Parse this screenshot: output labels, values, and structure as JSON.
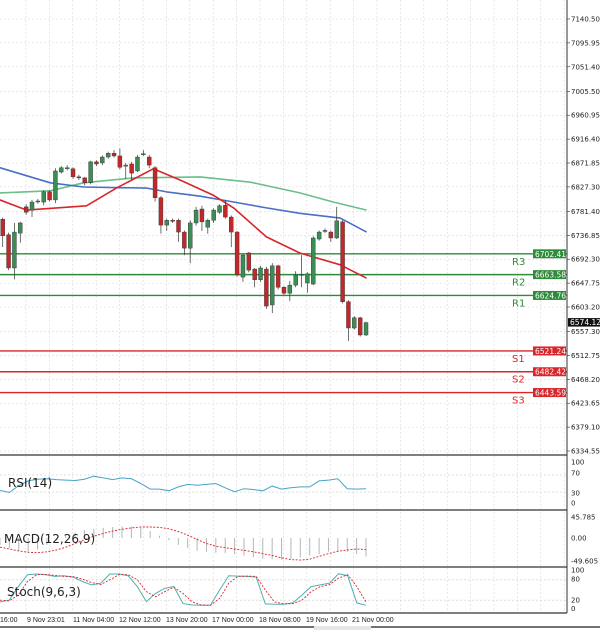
{
  "chart_data": {
    "type": "candlestick",
    "grid": true,
    "colors": {
      "up": "#3c8c55",
      "down": "#c0282a",
      "ma_fast": "#d9262a",
      "ma_mid": "#4a6fc8",
      "ma_slow": "#6cbf8a",
      "resistance": "#2e8b3a",
      "support": "#d9262a",
      "current": "#111111"
    },
    "price_axis": {
      "range": [
        6334.55,
        7140.5
      ],
      "ticks": [
        "7140.50",
        "7095.95",
        "7051.40",
        "7005.50",
        "6960.95",
        "6916.40",
        "6871.85",
        "6827.30",
        "6781.40",
        "6736.85",
        "6692.30",
        "6647.75",
        "6603.20",
        "6557.30",
        "6512.75",
        "6468.20",
        "6423.65",
        "6379.10",
        "6334.55"
      ]
    },
    "time_axis": {
      "ticks": [
        "16:00",
        "9 Nov 23:01",
        "11 Nov 04:00",
        "12 Nov 12:00",
        "13 Nov 20:00",
        "17 Nov 00:00",
        "18 Nov 08:00",
        "19 Nov 16:00",
        "21 Nov 00:00"
      ]
    },
    "current_price": "6574.12",
    "levels": [
      {
        "name": "R3",
        "value": "6702.41",
        "kind": "resistance"
      },
      {
        "name": "R2",
        "value": "6663.58",
        "kind": "resistance"
      },
      {
        "name": "R1",
        "value": "6624.76",
        "kind": "resistance"
      },
      {
        "name": "S1",
        "value": "6521.24",
        "kind": "support"
      },
      {
        "name": "S2",
        "value": "6482.42",
        "kind": "support"
      },
      {
        "name": "S3",
        "value": "6443.59",
        "kind": "support"
      }
    ],
    "candles": [
      [
        6767,
        6770,
        6715,
        6736
      ],
      [
        6738,
        6742,
        6672,
        6676
      ],
      [
        6676,
        6760,
        6655,
        6743
      ],
      [
        6741,
        6762,
        6723,
        6760
      ],
      [
        6790,
        6795,
        6775,
        6780
      ],
      [
        6784,
        6803,
        6771,
        6799
      ],
      [
        6800,
        6805,
        6796,
        6801
      ],
      [
        6799,
        6821,
        6793,
        6818
      ],
      [
        6818,
        6821,
        6800,
        6803
      ],
      [
        6803,
        6862,
        6797,
        6857
      ],
      [
        6855,
        6866,
        6852,
        6863
      ],
      [
        6862,
        6868,
        6858,
        6863
      ],
      [
        6861,
        6864,
        6842,
        6846
      ],
      [
        6846,
        6850,
        6840,
        6845
      ],
      [
        6844,
        6846,
        6830,
        6835
      ],
      [
        6835,
        6876,
        6832,
        6874
      ],
      [
        6874,
        6877,
        6866,
        6870
      ],
      [
        6872,
        6886,
        6868,
        6883
      ],
      [
        6883,
        6893,
        6880,
        6890
      ],
      [
        6890,
        6896,
        6882,
        6885
      ],
      [
        6885,
        6899,
        6860,
        6864
      ],
      [
        6866,
        6872,
        6842,
        6868
      ],
      [
        6870,
        6874,
        6840,
        6853
      ],
      [
        6857,
        6887,
        6855,
        6883
      ],
      [
        6888,
        6896,
        6885,
        6889
      ],
      [
        6883,
        6887,
        6862,
        6868
      ],
      [
        6863,
        6866,
        6800,
        6807
      ],
      [
        6807,
        6810,
        6740,
        6756
      ],
      [
        6756,
        6768,
        6745,
        6765
      ],
      [
        6765,
        6768,
        6760,
        6764
      ],
      [
        6765,
        6768,
        6725,
        6743
      ],
      [
        6743,
        6746,
        6700,
        6713
      ],
      [
        6713,
        6765,
        6685,
        6760
      ],
      [
        6760,
        6790,
        6755,
        6784
      ],
      [
        6786,
        6792,
        6745,
        6762
      ],
      [
        6752,
        6768,
        6740,
        6765
      ],
      [
        6765,
        6787,
        6760,
        6784
      ],
      [
        6780,
        6795,
        6777,
        6792
      ],
      [
        6793,
        6802,
        6768,
        6771
      ],
      [
        6771,
        6774,
        6715,
        6743
      ],
      [
        6743,
        6745,
        6660,
        6663
      ],
      [
        6659,
        6703,
        6650,
        6700
      ],
      [
        6704,
        6706,
        6668,
        6672
      ],
      [
        6674,
        6676,
        6640,
        6654
      ],
      [
        6654,
        6680,
        6650,
        6676
      ],
      [
        6674,
        6678,
        6600,
        6605
      ],
      [
        6607,
        6685,
        6592,
        6680
      ],
      [
        6680,
        6682,
        6636,
        6640
      ],
      [
        6640,
        6642,
        6626,
        6629
      ],
      [
        6629,
        6652,
        6614,
        6644
      ],
      [
        6644,
        6670,
        6640,
        6663
      ],
      [
        6663,
        6700,
        6640,
        6664
      ],
      [
        6648,
        6668,
        6630,
        6665
      ],
      [
        6646,
        6735,
        6644,
        6732
      ],
      [
        6730,
        6746,
        6727,
        6743
      ],
      [
        6745,
        6750,
        6741,
        6746
      ],
      [
        6743,
        6746,
        6725,
        6732
      ],
      [
        6732,
        6790,
        6730,
        6764
      ],
      [
        6762,
        6765,
        6610,
        6613
      ],
      [
        6613,
        6616,
        6540,
        6564
      ],
      [
        6564,
        6586,
        6561,
        6583
      ],
      [
        6583,
        6585,
        6548,
        6551
      ],
      [
        6551,
        6576,
        6549,
        6574.12
      ]
    ],
    "moving_averages": {
      "fast": [
        [
          -0.5,
          6803
        ],
        [
          4.1,
          6784
        ],
        [
          14.3,
          6792
        ],
        [
          19.4,
          6825
        ],
        [
          25.7,
          6861
        ],
        [
          30.3,
          6840
        ],
        [
          35.9,
          6812
        ],
        [
          39.4,
          6788
        ],
        [
          45,
          6734
        ],
        [
          50.7,
          6704
        ],
        [
          57.6,
          6682
        ],
        [
          62.1,
          6657
        ]
      ],
      "mid": [
        [
          -0.5,
          6863
        ],
        [
          8.1,
          6835
        ],
        [
          13.8,
          6827
        ],
        [
          24.6,
          6825
        ],
        [
          28,
          6818
        ],
        [
          33.7,
          6810
        ],
        [
          39.4,
          6799
        ],
        [
          45,
          6788
        ],
        [
          50.7,
          6778
        ],
        [
          57.6,
          6769
        ],
        [
          62.1,
          6743
        ]
      ],
      "slow": [
        [
          -0.5,
          6816
        ],
        [
          8.1,
          6820
        ],
        [
          13.8,
          6835
        ],
        [
          22.3,
          6844
        ],
        [
          33.7,
          6846
        ],
        [
          42.3,
          6836
        ],
        [
          50.7,
          6816
        ],
        [
          56.4,
          6799
        ],
        [
          62.1,
          6784
        ]
      ]
    },
    "indicators": {
      "rsi": {
        "label": "RSI(14)",
        "ticks": [
          "100",
          "70",
          "30",
          "0"
        ],
        "values": [
          34,
          29,
          45,
          56,
          60,
          61,
          59,
          58,
          57,
          60,
          67,
          63,
          59,
          63,
          61,
          50,
          37,
          37,
          33,
          42,
          48,
          46,
          48,
          50,
          40,
          31,
          38,
          36,
          33,
          44,
          37,
          40,
          42,
          42,
          56,
          58,
          61,
          38,
          37,
          38
        ]
      },
      "macd": {
        "label": "MACD(12,26,9)",
        "ticks": [
          "45.785",
          "0.00",
          "-49.605"
        ],
        "histogram": [
          -15,
          -22,
          -28,
          -30,
          -25,
          -15,
          -5,
          5,
          12,
          17,
          20,
          22,
          24,
          25,
          25,
          22,
          15,
          5,
          -5,
          -15,
          -22,
          -28,
          -30,
          -32,
          -33,
          -35,
          -38,
          -42,
          -45,
          -46,
          -47,
          -45,
          -42,
          -38,
          -35,
          -30,
          -28,
          -30,
          -35,
          -40
        ],
        "signal": [
          -20,
          -24,
          -28,
          -31,
          -32,
          -30,
          -26,
          -20,
          -12,
          -4,
          4,
          10,
          15,
          19,
          22,
          24,
          24,
          23,
          20,
          14,
          6,
          -3,
          -12,
          -18,
          -21,
          -24,
          -27,
          -30,
          -34,
          -38,
          -43,
          -47,
          -48,
          -46,
          -40,
          -34,
          -29,
          -26,
          -24,
          -25
        ]
      },
      "stoch": {
        "label": "Stoch(9,6,3)",
        "ticks": [
          "100",
          "80",
          "20",
          "0"
        ],
        "k": [
          15,
          20,
          60,
          95,
          97,
          95,
          90,
          92,
          88,
          75,
          65,
          70,
          97,
          97,
          92,
          60,
          16,
          40,
          55,
          60,
          10,
          6,
          5,
          5,
          50,
          92,
          91,
          90,
          88,
          9,
          8,
          8,
          12,
          35,
          60,
          65,
          70,
          98,
          92,
          12,
          5
        ],
        "d": [
          20,
          18,
          35,
          75,
          95,
          96,
          93,
          90,
          89,
          82,
          72,
          66,
          80,
          95,
          95,
          80,
          45,
          30,
          45,
          58,
          40,
          15,
          6,
          5,
          25,
          70,
          90,
          91,
          90,
          50,
          15,
          9,
          10,
          20,
          45,
          60,
          66,
          85,
          95,
          60,
          15
        ]
      }
    }
  }
}
